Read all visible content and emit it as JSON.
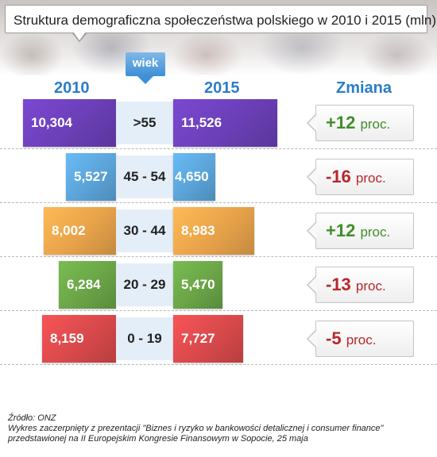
{
  "title": "Struktura demograficzna społeczeństwa polskiego w 2010 i 2015 (mln)",
  "age_header": "wiek",
  "col_2010": "2010",
  "col_2015": "2015",
  "col_change": "Zmiana",
  "colors": {
    "purple": "#6b3fb7",
    "blue": "#5ba3d8",
    "orange": "#e7a24a",
    "green": "#6aa447",
    "red": "#d8494b",
    "positive": "#3f8f28",
    "negative": "#b8262b"
  },
  "chart_data": {
    "type": "bar",
    "categories": [
      ">55",
      "45 - 54",
      "30 - 44",
      "20 - 29",
      "0 - 19"
    ],
    "series": [
      {
        "name": "2010",
        "values": [
          10.304,
          5.527,
          8.002,
          6.284,
          8.159
        ],
        "labels": [
          "10,304",
          "5,527",
          "8,002",
          "6,284",
          "8,159"
        ]
      },
      {
        "name": "2015",
        "values": [
          11.526,
          4.65,
          8.983,
          5.47,
          7.727
        ],
        "labels": [
          "11,526",
          "4,650",
          "8,983",
          "5,470",
          "7,727"
        ]
      }
    ],
    "changes": [
      "+12",
      "-16",
      "+12",
      "-13",
      "-5"
    ],
    "change_unit": "proc.",
    "row_colors": [
      "purple",
      "blue",
      "orange",
      "green",
      "red"
    ]
  },
  "footer": {
    "source": "Źródło: ONZ",
    "note": "Wykres zaczerpnięty z prezentacji \"Biznes i ryzyko w bankowości detalicznej i consumer finance\" przedstawionej na II Europejskim Kongresie Finansowym w Sopocie, 25 maja"
  }
}
